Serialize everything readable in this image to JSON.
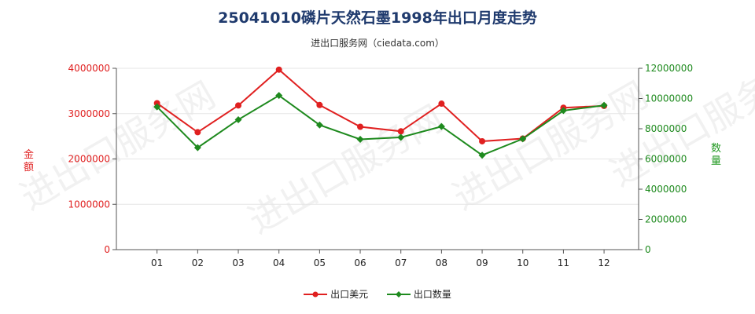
{
  "header": {
    "title": "25041010磷片天然石墨1998年出口月度走势",
    "subtitle": "进出口服务网（ciedata.com）"
  },
  "watermark": "进出口服务网",
  "colors": {
    "value": "#e02020",
    "quantity": "#1e8a1e",
    "grid": "#e6e6e6",
    "axis": "#555555"
  },
  "chart_data": {
    "type": "line",
    "categories": [
      "01",
      "02",
      "03",
      "04",
      "05",
      "06",
      "07",
      "08",
      "09",
      "10",
      "11",
      "12"
    ],
    "left_axis": {
      "label": "金额",
      "range": [
        0,
        4000000
      ],
      "ticks": [
        0,
        1000000,
        2000000,
        3000000,
        4000000
      ],
      "tick_labels": [
        "0",
        "1000000",
        "2000000",
        "3000000",
        "4000000"
      ]
    },
    "right_axis": {
      "label": "数量",
      "range": [
        0,
        12000000
      ],
      "ticks": [
        0,
        2000000,
        4000000,
        6000000,
        8000000,
        10000000,
        12000000
      ],
      "tick_labels": [
        "0",
        "2000000",
        "4000000",
        "6000000",
        "8000000",
        "10000000",
        "12000000"
      ]
    },
    "series": [
      {
        "name": "出口美元",
        "axis": "left",
        "color": "#e02020",
        "values": [
          3230000,
          2590000,
          3180000,
          3970000,
          3190000,
          2710000,
          2610000,
          3220000,
          2390000,
          2450000,
          3130000,
          3170000
        ]
      },
      {
        "name": "出口数量",
        "axis": "right",
        "color": "#1e8a1e",
        "values": [
          9450000,
          6750000,
          8600000,
          10200000,
          8250000,
          7300000,
          7430000,
          8150000,
          6250000,
          7330000,
          9200000,
          9550000
        ]
      }
    ],
    "grid": "horizontal",
    "legend_position": "bottom"
  }
}
